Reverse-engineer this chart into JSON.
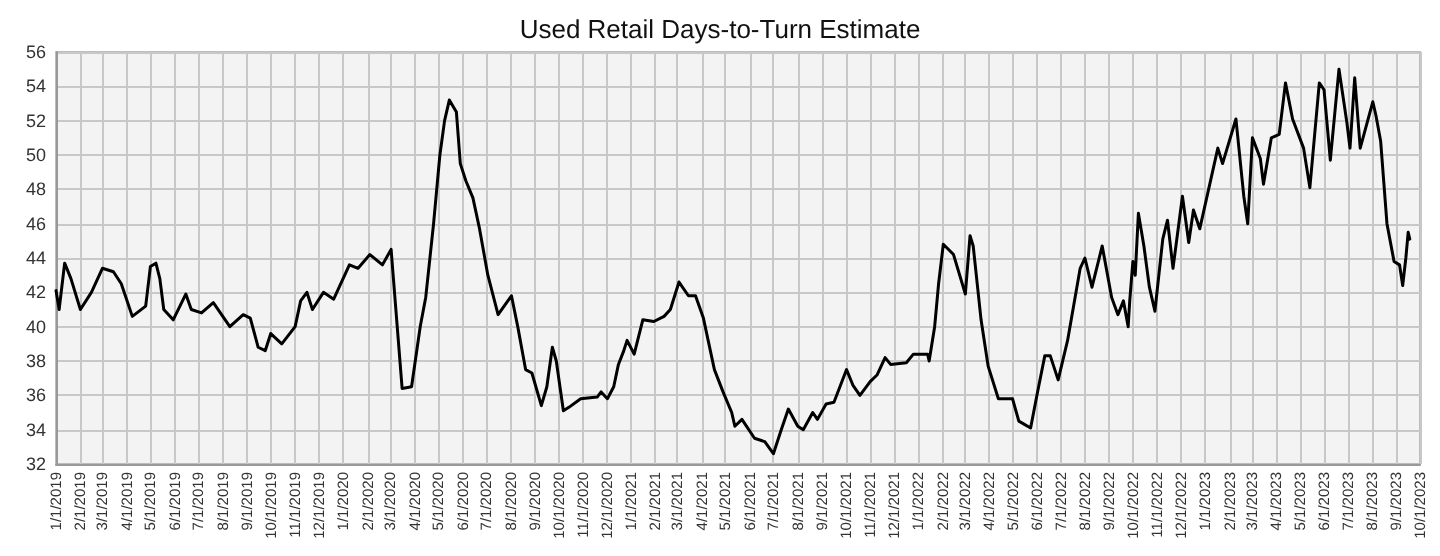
{
  "chart_data": {
    "type": "line",
    "title": "Used Retail Days-to-Turn Estimate",
    "x": [
      "2019-01-01",
      "2019-01-05",
      "2019-01-12",
      "2019-01-20",
      "2019-02-01",
      "2019-02-15",
      "2019-03-01",
      "2019-03-15",
      "2019-03-25",
      "2019-04-08",
      "2019-04-25",
      "2019-05-01",
      "2019-05-08",
      "2019-05-13",
      "2019-05-18",
      "2019-05-30",
      "2019-06-15",
      "2019-06-22",
      "2019-07-05",
      "2019-07-20",
      "2019-08-10",
      "2019-08-27",
      "2019-09-05",
      "2019-09-15",
      "2019-09-24",
      "2019-10-01",
      "2019-10-15",
      "2019-11-01",
      "2019-11-08",
      "2019-11-16",
      "2019-11-23",
      "2019-12-07",
      "2019-12-20",
      "2020-01-09",
      "2020-01-20",
      "2020-02-04",
      "2020-02-20",
      "2020-03-02",
      "2020-03-16",
      "2020-03-28",
      "2020-04-08",
      "2020-04-15",
      "2020-04-25",
      "2020-05-03",
      "2020-05-09",
      "2020-05-15",
      "2020-05-24",
      "2020-05-29",
      "2020-06-05",
      "2020-06-14",
      "2020-06-22",
      "2020-07-03",
      "2020-07-16",
      "2020-08-02",
      "2020-08-10",
      "2020-08-20",
      "2020-08-28",
      "2020-09-09",
      "2020-09-16",
      "2020-09-23",
      "2020-09-28",
      "2020-10-07",
      "2020-10-14",
      "2020-10-29",
      "2020-11-19",
      "2020-11-24",
      "2020-12-02",
      "2020-12-10",
      "2020-12-16",
      "2020-12-22",
      "2020-12-27",
      "2021-01-05",
      "2021-01-16",
      "2021-01-30",
      "2021-02-12",
      "2021-02-20",
      "2021-03-03",
      "2021-03-15",
      "2021-03-24",
      "2021-04-03",
      "2021-04-17",
      "2021-04-28",
      "2021-05-09",
      "2021-05-13",
      "2021-05-22",
      "2021-06-07",
      "2021-06-20",
      "2021-07-01",
      "2021-07-11",
      "2021-07-20",
      "2021-08-01",
      "2021-08-08",
      "2021-08-20",
      "2021-08-26",
      "2021-09-06",
      "2021-09-16",
      "2021-10-02",
      "2021-10-10",
      "2021-10-19",
      "2021-11-01",
      "2021-11-10",
      "2021-11-20",
      "2021-11-27",
      "2021-12-17",
      "2021-12-26",
      "2022-01-13",
      "2022-01-15",
      "2022-01-22",
      "2022-01-27",
      "2022-02-02",
      "2022-02-15",
      "2022-03-02",
      "2022-03-08",
      "2022-03-12",
      "2022-03-22",
      "2022-03-31",
      "2022-04-13",
      "2022-05-01",
      "2022-05-09",
      "2022-05-24",
      "2022-06-01",
      "2022-06-11",
      "2022-06-18",
      "2022-06-28",
      "2022-07-10",
      "2022-07-26",
      "2022-08-01",
      "2022-08-10",
      "2022-08-23",
      "2022-09-04",
      "2022-09-12",
      "2022-09-19",
      "2022-09-25",
      "2022-09-27",
      "2022-10-01",
      "2022-10-04",
      "2022-10-08",
      "2022-10-15",
      "2022-10-22",
      "2022-10-29",
      "2022-11-08",
      "2022-11-14",
      "2022-11-21",
      "2022-12-03",
      "2022-12-11",
      "2022-12-17",
      "2022-12-25",
      "2023-01-17",
      "2023-01-23",
      "2023-02-09",
      "2023-02-19",
      "2023-02-24",
      "2023-03-02",
      "2023-03-12",
      "2023-03-16",
      "2023-03-26",
      "2023-04-05",
      "2023-04-13",
      "2023-04-22",
      "2023-05-06",
      "2023-05-14",
      "2023-05-26",
      "2023-06-01",
      "2023-06-09",
      "2023-06-20",
      "2023-06-30",
      "2023-07-04",
      "2023-07-10",
      "2023-07-17",
      "2023-08-02",
      "2023-08-06",
      "2023-08-12",
      "2023-08-20",
      "2023-08-29",
      "2023-09-05",
      "2023-09-09",
      "2023-09-13",
      "2023-09-16",
      "2023-09-18"
    ],
    "series": [
      {
        "color": "#000000",
        "values": [
          42.1,
          41.0,
          43.7,
          42.8,
          41.0,
          42.0,
          43.4,
          43.2,
          42.5,
          40.6,
          41.2,
          43.5,
          43.7,
          42.8,
          41.0,
          40.4,
          41.9,
          41.0,
          40.8,
          41.4,
          40.0,
          40.7,
          40.5,
          38.8,
          38.6,
          39.6,
          39.0,
          40.0,
          41.5,
          42.0,
          41.0,
          42.0,
          41.6,
          43.6,
          43.4,
          44.2,
          43.6,
          44.5,
          36.4,
          36.5,
          40.0,
          41.7,
          46.0,
          50.0,
          52.0,
          53.2,
          52.5,
          49.5,
          48.5,
          47.5,
          45.8,
          43.0,
          40.7,
          41.8,
          40.0,
          37.5,
          37.3,
          35.4,
          36.5,
          38.8,
          38.0,
          35.1,
          35.3,
          35.8,
          35.9,
          36.2,
          35.8,
          36.5,
          37.8,
          38.5,
          39.2,
          38.4,
          40.4,
          40.3,
          40.6,
          41.0,
          42.6,
          41.8,
          41.8,
          40.5,
          37.5,
          36.2,
          35.0,
          34.2,
          34.6,
          33.5,
          33.3,
          32.6,
          34.0,
          35.2,
          34.2,
          34.0,
          35.0,
          34.6,
          35.5,
          35.6,
          37.5,
          36.6,
          36.0,
          36.8,
          37.2,
          38.2,
          37.8,
          37.9,
          38.4,
          38.4,
          38.0,
          40.0,
          42.5,
          44.8,
          44.2,
          41.9,
          45.3,
          44.7,
          40.4,
          37.7,
          35.8,
          35.8,
          34.5,
          34.1,
          36.0,
          38.3,
          38.3,
          36.9,
          39.2,
          43.4,
          44.0,
          42.3,
          44.7,
          41.7,
          40.7,
          41.5,
          40.0,
          41.5,
          43.8,
          43.0,
          46.6,
          44.7,
          42.3,
          40.9,
          45.1,
          46.2,
          43.4,
          47.6,
          44.9,
          46.8,
          45.7,
          50.4,
          49.5,
          52.1,
          47.6,
          46.0,
          51.0,
          49.8,
          48.3,
          51.0,
          51.2,
          54.2,
          52.1,
          50.4,
          48.1,
          54.2,
          53.8,
          49.7,
          55.0,
          51.9,
          50.4,
          54.5,
          50.4,
          53.1,
          52.3,
          50.8,
          46.0,
          43.8,
          43.6,
          42.4,
          44.0,
          45.5,
          45.1
        ]
      }
    ],
    "xlim": [
      "2019-01-01",
      "2023-10-01"
    ],
    "xticks": [
      {
        "value": "2019-01-01",
        "label": "1/1/2019"
      },
      {
        "value": "2019-02-01",
        "label": "2/1/2019"
      },
      {
        "value": "2019-03-01",
        "label": "3/1/2019"
      },
      {
        "value": "2019-04-01",
        "label": "4/1/2019"
      },
      {
        "value": "2019-05-01",
        "label": "5/1/2019"
      },
      {
        "value": "2019-06-01",
        "label": "6/1/2019"
      },
      {
        "value": "2019-07-01",
        "label": "7/1/2019"
      },
      {
        "value": "2019-08-01",
        "label": "8/1/2019"
      },
      {
        "value": "2019-09-01",
        "label": "9/1/2019"
      },
      {
        "value": "2019-10-01",
        "label": "10/1/2019"
      },
      {
        "value": "2019-11-01",
        "label": "11/1/2019"
      },
      {
        "value": "2019-12-01",
        "label": "12/1/2019"
      },
      {
        "value": "2020-01-01",
        "label": "1/1/2020"
      },
      {
        "value": "2020-02-01",
        "label": "2/1/2020"
      },
      {
        "value": "2020-03-01",
        "label": "3/1/2020"
      },
      {
        "value": "2020-04-01",
        "label": "4/1/2020"
      },
      {
        "value": "2020-05-01",
        "label": "5/1/2020"
      },
      {
        "value": "2020-06-01",
        "label": "6/1/2020"
      },
      {
        "value": "2020-07-01",
        "label": "7/1/2020"
      },
      {
        "value": "2020-08-01",
        "label": "8/1/2020"
      },
      {
        "value": "2020-09-01",
        "label": "9/1/2020"
      },
      {
        "value": "2020-10-01",
        "label": "10/1/2020"
      },
      {
        "value": "2020-11-01",
        "label": "11/1/2020"
      },
      {
        "value": "2020-12-01",
        "label": "12/1/2020"
      },
      {
        "value": "2021-01-01",
        "label": "1/1/2021"
      },
      {
        "value": "2021-02-01",
        "label": "2/1/2021"
      },
      {
        "value": "2021-03-01",
        "label": "3/1/2021"
      },
      {
        "value": "2021-04-01",
        "label": "4/1/2021"
      },
      {
        "value": "2021-05-01",
        "label": "5/1/2021"
      },
      {
        "value": "2021-06-01",
        "label": "6/1/2021"
      },
      {
        "value": "2021-07-01",
        "label": "7/1/2021"
      },
      {
        "value": "2021-08-01",
        "label": "8/1/2021"
      },
      {
        "value": "2021-09-01",
        "label": "9/1/2021"
      },
      {
        "value": "2021-10-01",
        "label": "10/1/2021"
      },
      {
        "value": "2021-11-01",
        "label": "11/1/2021"
      },
      {
        "value": "2021-12-01",
        "label": "12/1/2021"
      },
      {
        "value": "2022-01-01",
        "label": "1/1/2022"
      },
      {
        "value": "2022-02-01",
        "label": "2/1/2022"
      },
      {
        "value": "2022-03-01",
        "label": "3/1/2022"
      },
      {
        "value": "2022-04-01",
        "label": "4/1/2022"
      },
      {
        "value": "2022-05-01",
        "label": "5/1/2022"
      },
      {
        "value": "2022-06-01",
        "label": "6/1/2022"
      },
      {
        "value": "2022-07-01",
        "label": "7/1/2022"
      },
      {
        "value": "2022-08-01",
        "label": "8/1/2022"
      },
      {
        "value": "2022-09-01",
        "label": "9/1/2022"
      },
      {
        "value": "2022-10-01",
        "label": "10/1/2022"
      },
      {
        "value": "2022-11-01",
        "label": "11/1/2022"
      },
      {
        "value": "2022-12-01",
        "label": "12/1/2022"
      },
      {
        "value": "2023-01-01",
        "label": "1/1/2023"
      },
      {
        "value": "2023-02-01",
        "label": "2/1/2023"
      },
      {
        "value": "2023-03-01",
        "label": "3/1/2023"
      },
      {
        "value": "2023-04-01",
        "label": "4/1/2023"
      },
      {
        "value": "2023-05-01",
        "label": "5/1/2023"
      },
      {
        "value": "2023-06-01",
        "label": "6/1/2023"
      },
      {
        "value": "2023-07-01",
        "label": "7/1/2023"
      },
      {
        "value": "2023-08-01",
        "label": "8/1/2023"
      },
      {
        "value": "2023-09-01",
        "label": "9/1/2023"
      },
      {
        "value": "2023-10-01",
        "label": "10/1/2023"
      }
    ],
    "ylim": [
      32,
      56
    ],
    "yticks": [
      32,
      34,
      36,
      38,
      40,
      42,
      44,
      46,
      48,
      50,
      52,
      54,
      56
    ],
    "grid": true,
    "marker": "none",
    "line_style": "solid"
  }
}
